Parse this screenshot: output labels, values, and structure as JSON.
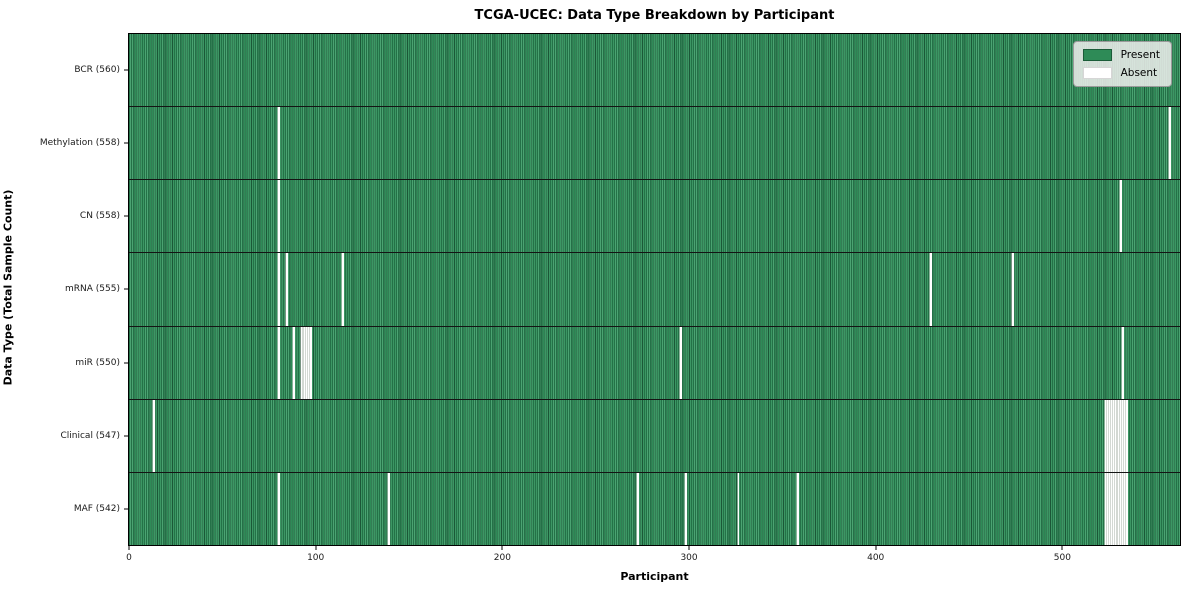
{
  "title": "TCGA-UCEC: Data Type Breakdown by Participant",
  "legend": {
    "present_label": "Present",
    "absent_label": "Absent"
  },
  "colors": {
    "present": "#2e8b57",
    "present_dark": "#1b5737",
    "present_light": "#4ba372",
    "absent": "#ffffff",
    "band_edge": "#b6bdb6",
    "legend_bg": "#e9ece9"
  },
  "chart_data": {
    "type": "heatmap",
    "title": "TCGA-UCEC: Data Type Breakdown by Participant",
    "xlabel": "Participant",
    "ylabel": "Data Type (Total Sample Count)",
    "xlim": [
      0,
      563
    ],
    "xticks": [
      0,
      100,
      200,
      300,
      400,
      500
    ],
    "legend": [
      "Present",
      "Absent"
    ],
    "legend_position": "upper right",
    "grid": false,
    "cell_states": {
      "present": 1,
      "absent": 0
    },
    "rows": [
      {
        "label": "BCR (560)",
        "data_type": "BCR",
        "total_sample_count": 560,
        "absent_participants": []
      },
      {
        "label": "Methylation (558)",
        "data_type": "Methylation",
        "total_sample_count": 558,
        "absent_participants": [
          80,
          557
        ]
      },
      {
        "label": "CN (558)",
        "data_type": "CN",
        "total_sample_count": 558,
        "absent_participants": [
          80,
          531
        ]
      },
      {
        "label": "mRNA (555)",
        "data_type": "mRNA",
        "total_sample_count": 555,
        "absent_participants": [
          80,
          84,
          114,
          429,
          473
        ]
      },
      {
        "label": "miR (550)",
        "data_type": "miR",
        "total_sample_count": 550,
        "absent_participants": [
          80,
          88,
          92,
          93,
          94,
          95,
          96,
          97,
          295,
          532
        ]
      },
      {
        "label": "Clinical (547)",
        "data_type": "Clinical",
        "total_sample_count": 547,
        "absent_participants": [
          13,
          523,
          524,
          525,
          526,
          527,
          528,
          529,
          530,
          531,
          532,
          533,
          534
        ]
      },
      {
        "label": "MAF (542)",
        "data_type": "MAF",
        "total_sample_count": 542,
        "absent_participants": [
          80,
          139,
          272,
          298,
          326,
          358,
          523,
          524,
          525,
          526,
          527,
          528,
          529,
          530,
          531,
          532,
          533,
          534
        ]
      }
    ]
  }
}
